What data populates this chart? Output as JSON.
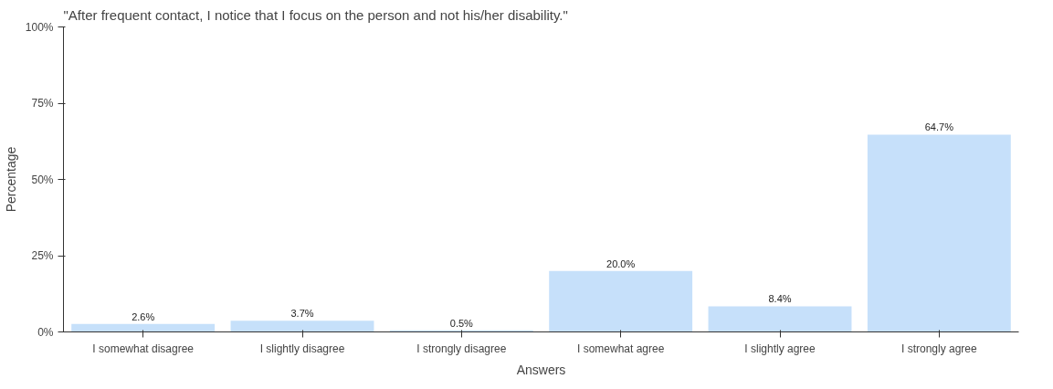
{
  "chart_data": {
    "type": "bar",
    "title": "\"After frequent contact, I notice that I focus on the person and not his/her disability.\"",
    "xlabel": "Answers",
    "ylabel": "Percentage",
    "categories": [
      "I somewhat disagree",
      "I slightly disagree",
      "I strongly disagree",
      "I somewhat agree",
      "I slightly agree",
      "I strongly agree"
    ],
    "values": [
      2.6,
      3.7,
      0.5,
      20.0,
      8.4,
      64.7
    ],
    "value_labels": [
      "2.6%",
      "3.7%",
      "0.5%",
      "20.0%",
      "8.4%",
      "64.7%"
    ],
    "color": "#c6e0fa",
    "ylim": [
      0,
      100
    ],
    "yticks": [
      {
        "value": 0,
        "label": "0%"
      },
      {
        "value": 25,
        "label": "25%"
      },
      {
        "value": 50,
        "label": "50%"
      },
      {
        "value": 75,
        "label": "75%"
      },
      {
        "value": 100,
        "label": "100%"
      }
    ],
    "grid": false
  }
}
